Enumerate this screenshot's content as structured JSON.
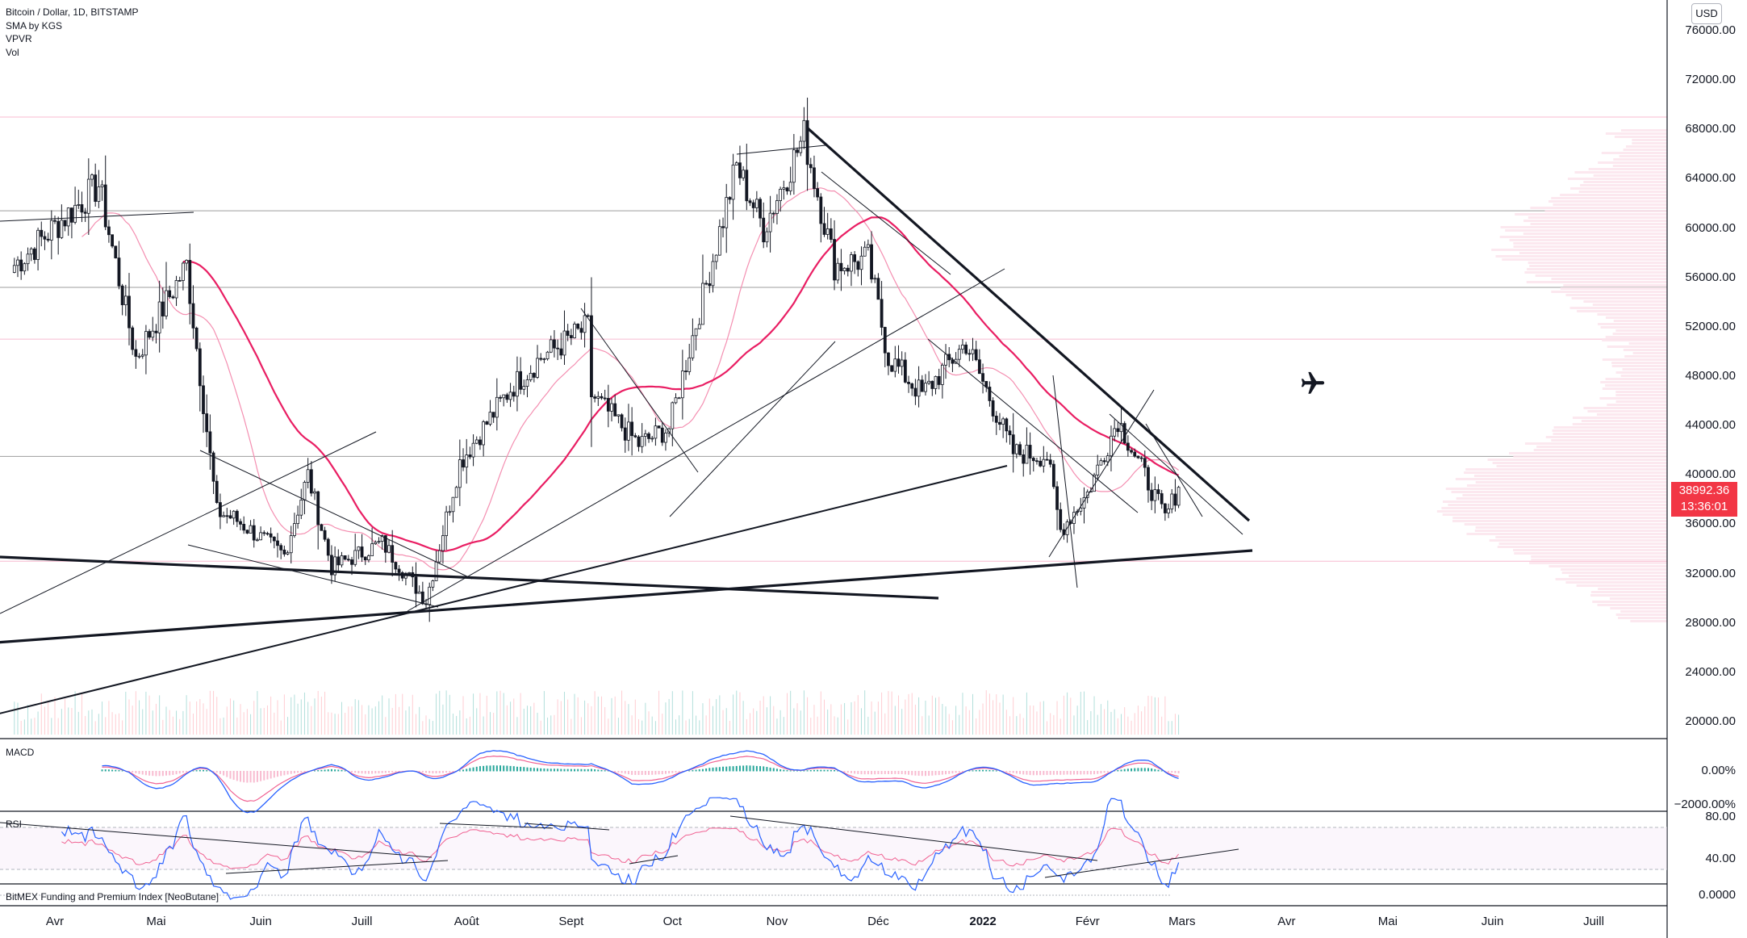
{
  "legend": {
    "symbol": "Bitcoin / Dollar, 1D, BITSTAMP",
    "indicators": [
      "SMA by KGS",
      "VPVR",
      "Vol"
    ]
  },
  "currency_button": "USD",
  "current_price": {
    "price": "38992.36",
    "countdown": "13:36:01",
    "color": "#f23645"
  },
  "panes": {
    "macd": {
      "label": "MACD",
      "axis_ticks": [
        "0.00%",
        "−2000.00%"
      ]
    },
    "rsi": {
      "label": "RSI",
      "axis_ticks": [
        "80.00",
        "40.00"
      ],
      "bands": [
        70,
        30
      ]
    },
    "bitmex": {
      "label": "BitMEX Funding and Premium Index [NeoButane]",
      "axis_ticks": [
        "0.0000"
      ]
    }
  },
  "colors": {
    "up": "#26a69a",
    "down": "#ef5350",
    "candle": "#131722",
    "sma_main": "#e91e63",
    "sma_secondary": "#f48fb1",
    "hline_pink": "#f8bbd0",
    "hline_gray": "#9e9e9e",
    "macd_line": "#2962ff",
    "signal_line": "#f06292",
    "rsi_line": "#2962ff"
  },
  "icons": {
    "plane": "airplane-icon"
  },
  "chart_data": {
    "type": "candlestick",
    "title": "Bitcoin / Dollar, 1D, BITSTAMP",
    "y_axis": {
      "ticks": [
        76000,
        72000,
        68000,
        64000,
        60000,
        56000,
        52000,
        48000,
        44000,
        40000,
        36000,
        32000,
        28000,
        24000,
        20000
      ],
      "tick_labels": [
        "76000.00",
        "72000.00",
        "68000.00",
        "64000.00",
        "60000.00",
        "56000.00",
        "52000.00",
        "48000.00",
        "44000.00",
        "40000.00",
        "36000.00",
        "32000.00",
        "28000.00",
        "24000.00",
        "20000.00"
      ],
      "ylim": [
        18500,
        78000
      ]
    },
    "x_axis": {
      "tick_labels": [
        "Avr",
        "Mai",
        "Juin",
        "Juill",
        "Août",
        "Sept",
        "Oct",
        "Nov",
        "Déc",
        "2022",
        "Févr",
        "Mars",
        "Avr",
        "Mai",
        "Juin",
        "Juill"
      ],
      "tick_dates": [
        "2021-04-01",
        "2021-05-01",
        "2021-06-01",
        "2021-07-01",
        "2021-08-01",
        "2021-09-01",
        "2021-10-01",
        "2021-11-01",
        "2021-12-01",
        "2022-01-01",
        "2022-02-01",
        "2022-03-01",
        "2022-04-01",
        "2022-05-01",
        "2022-06-01",
        "2022-07-01"
      ],
      "year_label": "2022"
    },
    "horizontal_levels": [
      {
        "price": 69000,
        "style": "pink"
      },
      {
        "price": 61400,
        "style": "gray"
      },
      {
        "price": 55200,
        "style": "gray"
      },
      {
        "price": 51000,
        "style": "pink"
      },
      {
        "price": 41500,
        "style": "gray"
      },
      {
        "price": 33000,
        "style": "pink"
      }
    ],
    "anchors": [
      {
        "date": "2021-03-20",
        "price": 57000
      },
      {
        "date": "2021-04-14",
        "price": 63500
      },
      {
        "date": "2021-04-25",
        "price": 49500
      },
      {
        "date": "2021-05-10",
        "price": 57000
      },
      {
        "date": "2021-05-19",
        "price": 37000
      },
      {
        "date": "2021-05-24",
        "price": 36500
      },
      {
        "date": "2021-06-08",
        "price": 33500
      },
      {
        "date": "2021-06-15",
        "price": 40000
      },
      {
        "date": "2021-06-22",
        "price": 32500
      },
      {
        "date": "2021-07-07",
        "price": 34500
      },
      {
        "date": "2021-07-20",
        "price": 29800
      },
      {
        "date": "2021-07-30",
        "price": 41000
      },
      {
        "date": "2021-08-14",
        "price": 47000
      },
      {
        "date": "2021-08-23",
        "price": 49500
      },
      {
        "date": "2021-09-06",
        "price": 52000
      },
      {
        "date": "2021-09-07",
        "price": 46500
      },
      {
        "date": "2021-09-21",
        "price": 42500
      },
      {
        "date": "2021-09-30",
        "price": 43800
      },
      {
        "date": "2021-10-20",
        "price": 65000
      },
      {
        "date": "2021-10-28",
        "price": 60000
      },
      {
        "date": "2021-11-09",
        "price": 67500
      },
      {
        "date": "2021-11-18",
        "price": 57000
      },
      {
        "date": "2021-11-28",
        "price": 57500
      },
      {
        "date": "2021-12-04",
        "price": 49500
      },
      {
        "date": "2021-12-14",
        "price": 46500
      },
      {
        "date": "2021-12-27",
        "price": 50700
      },
      {
        "date": "2022-01-10",
        "price": 41800
      },
      {
        "date": "2022-01-20",
        "price": 41500
      },
      {
        "date": "2022-01-24",
        "price": 35500
      },
      {
        "date": "2022-02-01",
        "price": 38500
      },
      {
        "date": "2022-02-10",
        "price": 44500
      },
      {
        "date": "2022-02-17",
        "price": 40500
      },
      {
        "date": "2022-02-24",
        "price": 36500
      },
      {
        "date": "2022-02-28",
        "price": 38992.36
      }
    ],
    "sma": {
      "main_period": 50,
      "secondary_period": 20
    },
    "last_price": 38992.36
  }
}
